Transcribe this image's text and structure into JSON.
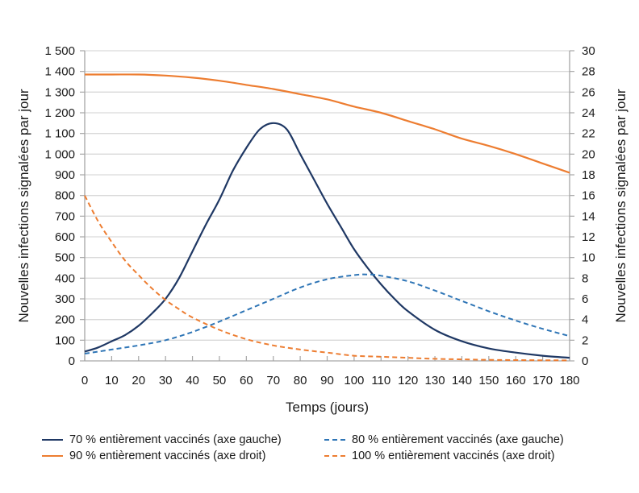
{
  "chart_data": {
    "type": "line",
    "title": "",
    "xlabel": "Temps (jours)",
    "ylabel_left": "Nouvelles infections signalées par jour",
    "ylabel_right": "Nouvelles infections signalées par jour",
    "xlim": [
      0,
      180
    ],
    "ylim_left": [
      0,
      1500
    ],
    "ylim_right": [
      0,
      30
    ],
    "x_ticks": [
      0,
      10,
      20,
      30,
      40,
      50,
      60,
      70,
      80,
      90,
      100,
      110,
      120,
      130,
      140,
      150,
      160,
      170,
      180
    ],
    "x_tick_labels": [
      "0",
      "10",
      "20",
      "30",
      "40",
      "50",
      "60",
      "70",
      "80",
      "90",
      "100",
      "110",
      "120",
      "130",
      "140",
      "150",
      "160",
      "170",
      "180"
    ],
    "y_left_ticks": [
      0,
      100,
      200,
      300,
      400,
      500,
      600,
      700,
      800,
      900,
      1000,
      1100,
      1200,
      1300,
      1400,
      1500
    ],
    "y_left_tick_labels": [
      "0",
      "100",
      "200",
      "300",
      "400",
      "500",
      "600",
      "700",
      "800",
      "900",
      "1 000",
      "1 100",
      "1 200",
      "1 300",
      "1 400",
      "1 500"
    ],
    "y_right_ticks": [
      0,
      2,
      4,
      6,
      8,
      10,
      12,
      14,
      16,
      18,
      20,
      22,
      24,
      26,
      28,
      30
    ],
    "y_right_tick_labels": [
      "0",
      "2",
      "4",
      "6",
      "8",
      "10",
      "12",
      "14",
      "16",
      "18",
      "20",
      "22",
      "24",
      "26",
      "28",
      "30"
    ],
    "grid": true,
    "legend_position": "bottom",
    "series": [
      {
        "name": "70 % entièrement vaccinés (axe gauche)",
        "axis": "left",
        "style": "solid",
        "color": "#1f3864",
        "x": [
          0,
          5,
          10,
          15,
          20,
          25,
          30,
          35,
          40,
          45,
          50,
          55,
          60,
          65,
          70,
          75,
          80,
          85,
          90,
          95,
          100,
          105,
          110,
          115,
          120,
          130,
          140,
          150,
          160,
          170,
          180
        ],
        "values": [
          45,
          65,
          95,
          125,
          170,
          230,
          300,
          400,
          530,
          660,
          780,
          920,
          1030,
          1120,
          1150,
          1120,
          1000,
          880,
          760,
          650,
          540,
          450,
          370,
          300,
          240,
          150,
          95,
          60,
          40,
          25,
          15
        ]
      },
      {
        "name": "80 % entièrement vaccinés (axe gauche)",
        "axis": "left",
        "style": "dashed",
        "color": "#2e75b6",
        "x": [
          0,
          10,
          20,
          30,
          40,
          50,
          60,
          70,
          80,
          90,
          100,
          105,
          110,
          120,
          130,
          140,
          150,
          160,
          170,
          180
        ],
        "values": [
          35,
          55,
          75,
          100,
          140,
          190,
          245,
          300,
          355,
          395,
          415,
          418,
          412,
          385,
          340,
          290,
          240,
          195,
          155,
          120
        ]
      },
      {
        "name": "90 % entièrement vaccinés (axe droit)",
        "axis": "right",
        "style": "solid",
        "color": "#ed7d31",
        "x": [
          0,
          10,
          20,
          30,
          40,
          50,
          60,
          70,
          80,
          90,
          100,
          110,
          120,
          130,
          140,
          150,
          160,
          170,
          180
        ],
        "values": [
          27.7,
          27.7,
          27.7,
          27.6,
          27.4,
          27.1,
          26.7,
          26.3,
          25.8,
          25.3,
          24.6,
          24.0,
          23.2,
          22.4,
          21.5,
          20.8,
          20.0,
          19.1,
          18.2
        ]
      },
      {
        "name": "100 % entièrement vaccinés (axe droit)",
        "axis": "right",
        "style": "dashed",
        "color": "#ed7d31",
        "x": [
          0,
          5,
          10,
          15,
          20,
          25,
          30,
          35,
          40,
          50,
          60,
          70,
          80,
          90,
          100,
          110,
          120,
          130,
          140,
          150,
          160,
          170,
          180
        ],
        "values": [
          16.0,
          13.5,
          11.5,
          9.7,
          8.3,
          7.0,
          5.9,
          5.0,
          4.2,
          3.0,
          2.1,
          1.5,
          1.1,
          0.8,
          0.5,
          0.4,
          0.3,
          0.2,
          0.15,
          0.1,
          0.08,
          0.06,
          0.05
        ]
      }
    ]
  },
  "colors": {
    "grid": "#d9d9d9",
    "axis": "#a6a6a6"
  }
}
